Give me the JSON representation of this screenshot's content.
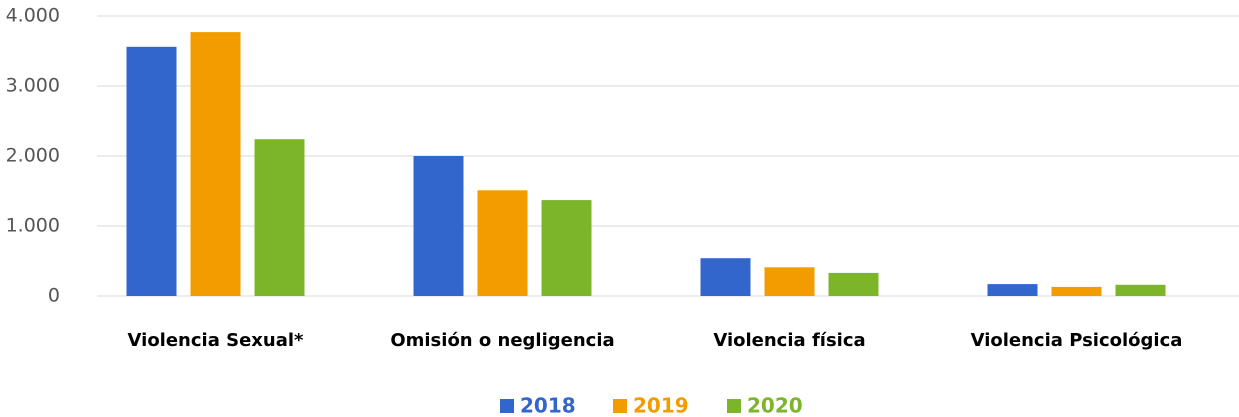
{
  "chart_data": {
    "type": "bar",
    "categories": [
      "Violencia Sexual*",
      "Omisión o negligencia",
      "Violencia física",
      "Violencia Psicológica"
    ],
    "series": [
      {
        "name": "2018",
        "color": "#3366cc",
        "values": [
          3560,
          2000,
          540,
          170
        ]
      },
      {
        "name": "2019",
        "color": "#f39c00",
        "values": [
          3770,
          1510,
          410,
          130
        ]
      },
      {
        "name": "2020",
        "color": "#7cb52a",
        "values": [
          2240,
          1370,
          330,
          160
        ]
      }
    ],
    "ylim": [
      0,
      4000
    ],
    "yticks": [
      0,
      {
        "value": 1000,
        "label": "1.000"
      },
      {
        "value": 2000,
        "label": "2.000"
      },
      {
        "value": 3000,
        "label": "3.000"
      },
      {
        "value": 4000,
        "label": "4.000"
      }
    ],
    "grid": true,
    "legend": "bottom"
  }
}
